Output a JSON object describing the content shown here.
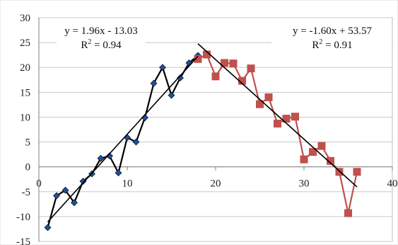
{
  "chart_data": {
    "type": "scatter",
    "xlim": [
      0,
      40
    ],
    "ylim": [
      -15,
      30
    ],
    "x_ticks": [
      0,
      10,
      20,
      30,
      40
    ],
    "y_ticks": [
      -15,
      -10,
      -5,
      0,
      5,
      10,
      15,
      20,
      25,
      30
    ],
    "grid": "horizontal",
    "legend": "none",
    "series": [
      {
        "color": "#000000",
        "marker_color": "#1f4e9c",
        "marker": "diamond",
        "points": [
          [
            1,
            -12.2
          ],
          [
            2,
            -5.8
          ],
          [
            3,
            -4.7
          ],
          [
            4,
            -7.2
          ],
          [
            5,
            -2.9
          ],
          [
            6,
            -1.4
          ],
          [
            7,
            1.7
          ],
          [
            8,
            2.2
          ],
          [
            9,
            -1.2
          ],
          [
            10,
            5.9
          ],
          [
            11,
            5.0
          ],
          [
            12,
            9.9
          ],
          [
            13,
            16.8
          ],
          [
            14,
            20.0
          ],
          [
            15,
            14.4
          ],
          [
            16,
            17.9
          ],
          [
            17,
            20.9
          ],
          [
            18,
            22.4
          ]
        ],
        "trendline": {
          "slope": 1.96,
          "intercept": -13.03,
          "x_range": [
            1,
            18
          ]
        }
      },
      {
        "color": "#c0504d",
        "marker_color": "#c0504d",
        "marker": "square",
        "points": [
          [
            18,
            21.7
          ],
          [
            19,
            22.6
          ],
          [
            20,
            18.2
          ],
          [
            21,
            20.9
          ],
          [
            22,
            20.8
          ],
          [
            23,
            17.3
          ],
          [
            24,
            19.8
          ],
          [
            25,
            12.6
          ],
          [
            26,
            14.0
          ],
          [
            27,
            8.7
          ],
          [
            28,
            9.7
          ],
          [
            29,
            10.1
          ],
          [
            30,
            1.5
          ],
          [
            31,
            3.0
          ],
          [
            32,
            4.2
          ],
          [
            33,
            1.2
          ],
          [
            34,
            -1.0
          ],
          [
            35,
            -9.3
          ],
          [
            36,
            -1.0
          ]
        ],
        "trendline": {
          "slope": -1.6,
          "intercept": 53.57,
          "x_range": [
            18,
            36
          ]
        }
      }
    ],
    "annotations": [
      {
        "equation": "y = 1.96x - 13.03",
        "r2_prefix": "R",
        "r2_suffix": " = 0.94"
      },
      {
        "equation": "y = -1.60x + 53.57",
        "r2_prefix": "R",
        "r2_suffix": " = 0.91"
      }
    ]
  }
}
